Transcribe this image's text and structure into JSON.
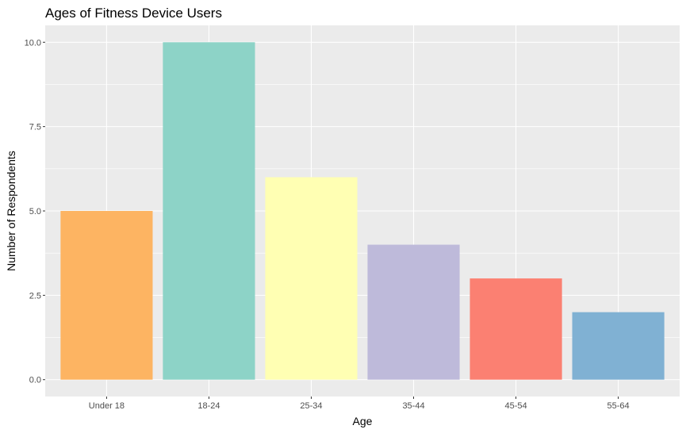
{
  "chart_data": {
    "type": "bar",
    "title": "Ages of Fitness Device Users",
    "xlabel": "Age",
    "ylabel": "Number of Respondents",
    "categories": [
      "Under 18",
      "18-24",
      "25-34",
      "35-44",
      "45-54",
      "55-64"
    ],
    "values": [
      5,
      10,
      6,
      4,
      3,
      2
    ],
    "bar_colors": [
      "#FDB462",
      "#8DD3C7",
      "#FFFFB3",
      "#BEBADA",
      "#FB8072",
      "#80B1D3"
    ],
    "ylim": [
      0,
      10
    ],
    "yticks": [
      0.0,
      2.5,
      5.0,
      7.5,
      10.0
    ],
    "ytick_labels": [
      "0.0",
      "2.5",
      "5.0",
      "7.5",
      "10.0"
    ],
    "grid": true,
    "panel_background": "#EBEBEB",
    "grid_color": "#FFFFFF",
    "legend": "none"
  }
}
